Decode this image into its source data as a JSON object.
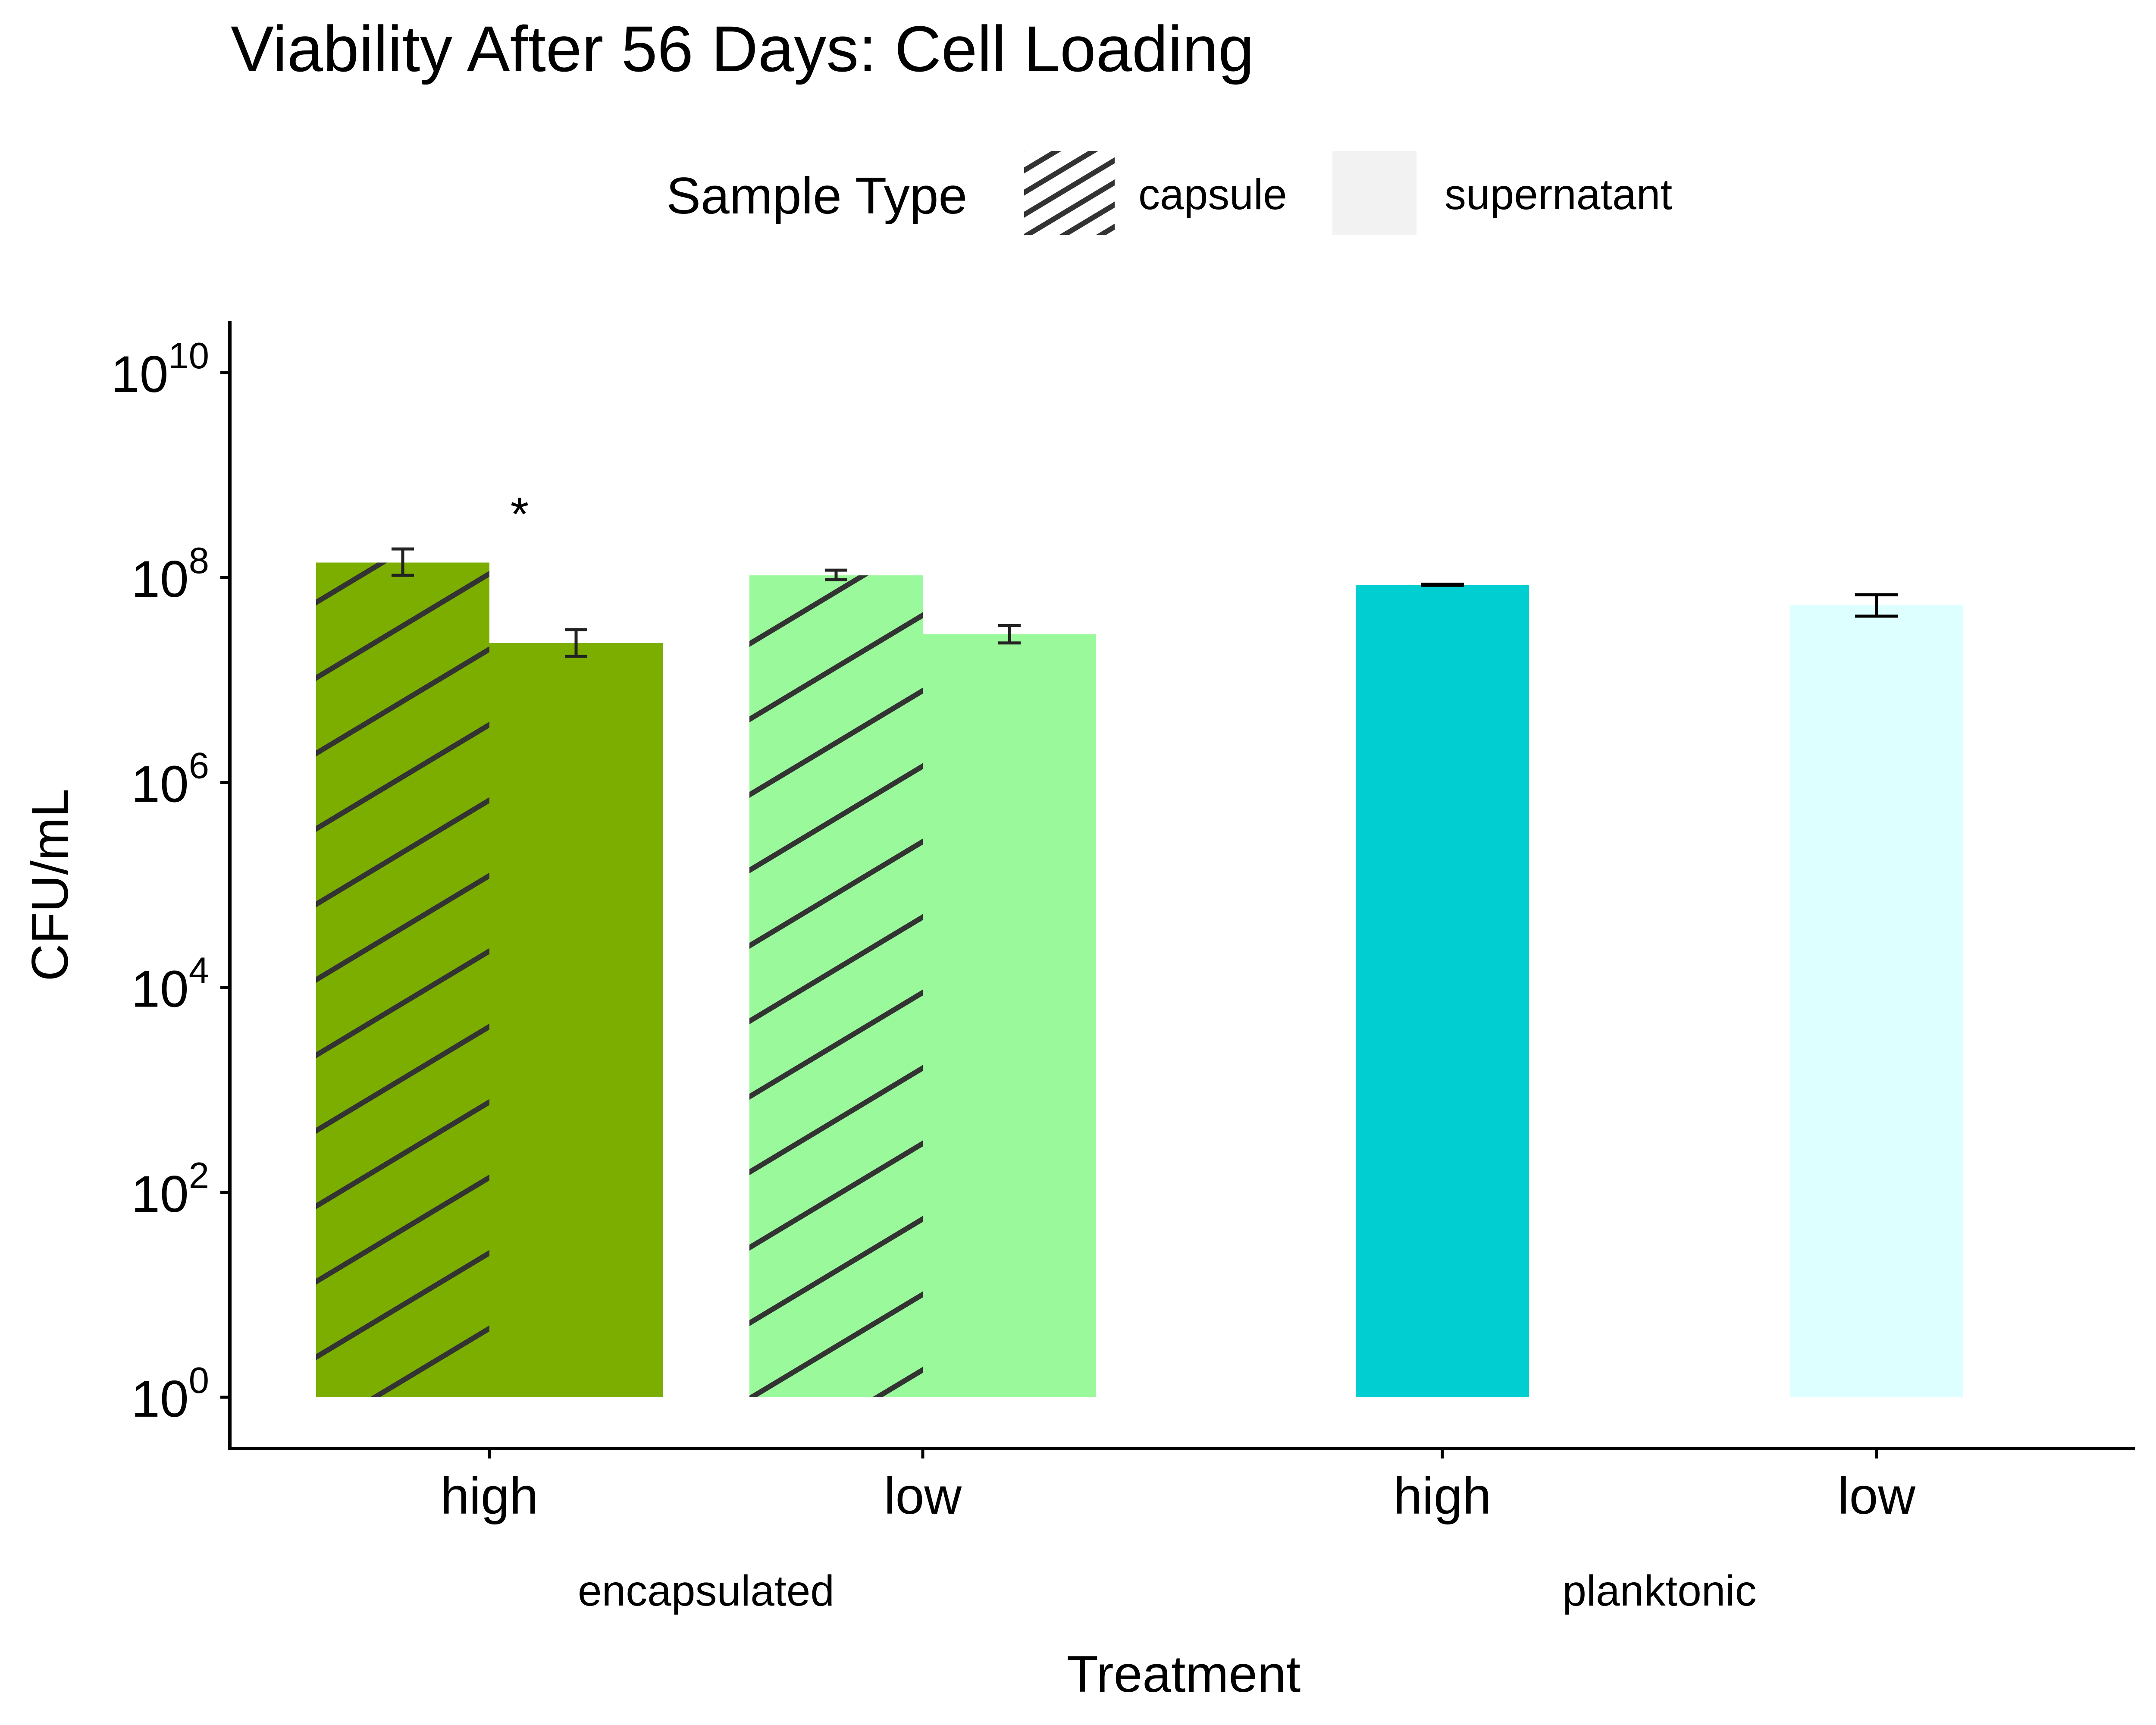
{
  "chart_data": {
    "type": "bar",
    "title": "Viability After 56 Days: Cell Loading",
    "xlabel": "Treatment",
    "ylabel": "CFU/mL",
    "y_scale": "log10",
    "ylim": [
      1,
      10000000000
    ],
    "y_ticks": [
      {
        "base": "10",
        "exp": "0",
        "value": 1
      },
      {
        "base": "10",
        "exp": "2",
        "value": 100
      },
      {
        "base": "10",
        "exp": "4",
        "value": 10000
      },
      {
        "base": "10",
        "exp": "6",
        "value": 1000000
      },
      {
        "base": "10",
        "exp": "8",
        "value": 100000000
      },
      {
        "base": "10",
        "exp": "10",
        "value": 10000000000
      }
    ],
    "groups": [
      {
        "name": "encapsulated",
        "categories": [
          "high",
          "low"
        ]
      },
      {
        "name": "planktonic",
        "categories": [
          "high",
          "low"
        ]
      }
    ],
    "legend": {
      "title": "Sample Type",
      "position": "top",
      "entries": [
        {
          "label": "capsule",
          "pattern": "stripe"
        },
        {
          "label": "supernatant",
          "pattern": "none"
        }
      ]
    },
    "bars": [
      {
        "group": "encapsulated",
        "category": "high",
        "sample_type": "capsule",
        "value": 140000000,
        "err_low": 105000000,
        "err_high": 190000000,
        "color": "#7CAE00",
        "pattern": "stripe"
      },
      {
        "group": "encapsulated",
        "category": "high",
        "sample_type": "supernatant",
        "value": 23000000,
        "err_low": 17000000,
        "err_high": 31000000,
        "color": "#7CAE00",
        "pattern": "none"
      },
      {
        "group": "encapsulated",
        "category": "low",
        "sample_type": "capsule",
        "value": 105000000,
        "err_low": 95000000,
        "err_high": 118000000,
        "color": "#9AF99A",
        "pattern": "stripe"
      },
      {
        "group": "encapsulated",
        "category": "low",
        "sample_type": "supernatant",
        "value": 28000000,
        "err_low": 23000000,
        "err_high": 34000000,
        "color": "#9AF99A",
        "pattern": "none"
      },
      {
        "group": "planktonic",
        "category": "high",
        "sample_type": "supernatant",
        "value": 85000000,
        "err_low": 84000000,
        "err_high": 86000000,
        "color": "#00CED1",
        "pattern": "none"
      },
      {
        "group": "planktonic",
        "category": "low",
        "sample_type": "supernatant",
        "value": 54000000,
        "err_low": 42000000,
        "err_high": 68000000,
        "color": "#DDFFFF",
        "pattern": "none"
      }
    ],
    "annotations": [
      {
        "text": "*",
        "group": "encapsulated",
        "category": "high"
      }
    ]
  }
}
